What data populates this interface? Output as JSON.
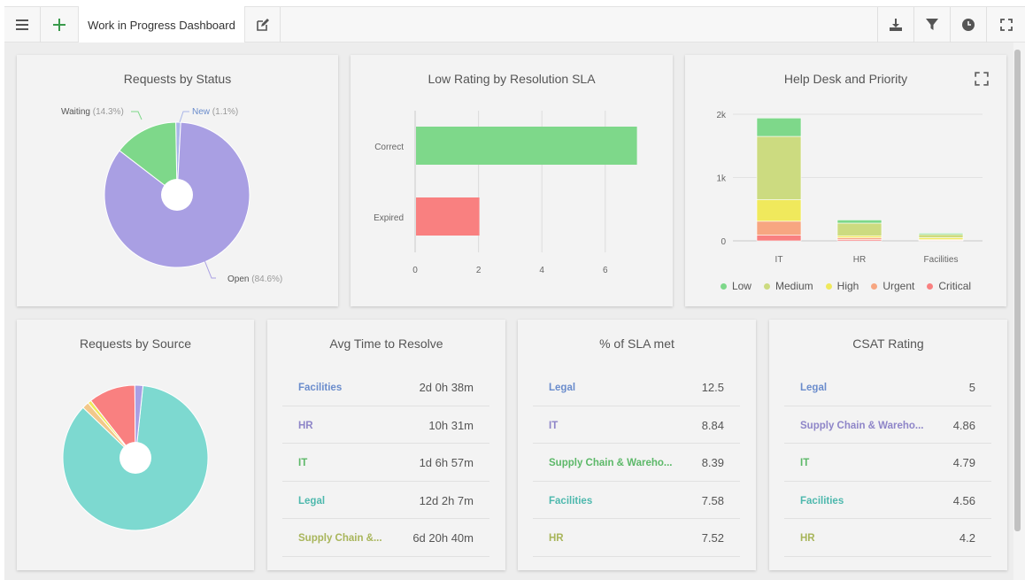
{
  "toolbar": {
    "menu_icon": "hamburger-menu-icon",
    "add_icon": "plus-icon",
    "tab_label": "Work in Progress Dashboard",
    "edit_icon": "edit-icon",
    "right_icons": [
      "download-icon",
      "filter-icon",
      "clock-icon",
      "fullscreen-icon"
    ]
  },
  "colors": {
    "green": "#7ed88a",
    "red": "#f98080",
    "purple": "#a99fe3",
    "teal": "#7dd9d0",
    "olive": "#ccdb80",
    "yellow": "#f0e95c",
    "orange": "#f7a681",
    "blue_link": "#6a8ccc"
  },
  "cards": {
    "status": {
      "title": "Requests by Status",
      "chart_data": {
        "type": "pie",
        "title": "Requests by Status",
        "slices": [
          {
            "label": "Open",
            "pct": "(84.6%)",
            "value": 84.6
          },
          {
            "label": "Waiting",
            "pct": "(14.3%)",
            "value": 14.3
          },
          {
            "label": "New",
            "pct": "(1.1%)",
            "value": 1.1
          }
        ]
      }
    },
    "sla_rating": {
      "title": "Low Rating by Resolution SLA",
      "chart_data": {
        "type": "bar",
        "orientation": "horizontal",
        "title": "Low Rating by Resolution SLA",
        "categories": [
          "Correct",
          "Expired"
        ],
        "values": [
          7,
          2
        ],
        "xlim": [
          0,
          7
        ],
        "xticks": [
          "0",
          "2",
          "4",
          "6"
        ]
      }
    },
    "helpdesk": {
      "title": "Help Desk and Priority",
      "chart_data": {
        "type": "bar",
        "stacked": true,
        "title": "Help Desk and Priority",
        "categories": [
          "IT",
          "HR",
          "Facilities"
        ],
        "yticks": [
          "0",
          "1k",
          "2k"
        ],
        "ylim": [
          0,
          2000
        ],
        "series": [
          {
            "name": "Low",
            "values": [
              290,
              50,
              20
            ]
          },
          {
            "name": "Medium",
            "values": [
              1000,
              200,
              50
            ]
          },
          {
            "name": "High",
            "values": [
              340,
              30,
              30
            ]
          },
          {
            "name": "Urgent",
            "values": [
              220,
              30,
              10
            ]
          },
          {
            "name": "Critical",
            "values": [
              90,
              20,
              10
            ]
          }
        ],
        "legend": "bottom"
      }
    },
    "source": {
      "title": "Requests by Source",
      "chart_data": {
        "type": "pie",
        "title": "Requests by Source",
        "slices": [
          {
            "value": 85.5
          },
          {
            "value": 1.5
          },
          {
            "value": 0.8
          },
          {
            "value": 10.4
          },
          {
            "value": 1.8
          }
        ]
      }
    },
    "avg_time": {
      "title": "Avg Time to Resolve",
      "rows": [
        {
          "name": "Facilities",
          "value": "2d 0h 38m"
        },
        {
          "name": "HR",
          "value": "10h 31m"
        },
        {
          "name": "IT",
          "value": "1d 6h 57m"
        },
        {
          "name": "Legal",
          "value": "12d 2h 7m"
        },
        {
          "name": "Supply Chain &...",
          "value": "6d 20h 40m"
        }
      ]
    },
    "sla_met": {
      "title": "% of SLA met",
      "rows": [
        {
          "name": "Legal",
          "value": "12.5"
        },
        {
          "name": "IT",
          "value": "8.84"
        },
        {
          "name": "Supply Chain & Wareho...",
          "value": "8.39"
        },
        {
          "name": "Facilities",
          "value": "7.58"
        },
        {
          "name": "HR",
          "value": "7.52"
        }
      ]
    },
    "csat": {
      "title": "CSAT Rating",
      "rows": [
        {
          "name": "Legal",
          "value": "5"
        },
        {
          "name": "Supply Chain & Wareho...",
          "value": "4.86"
        },
        {
          "name": "IT",
          "value": "4.79"
        },
        {
          "name": "Facilities",
          "value": "4.56"
        },
        {
          "name": "HR",
          "value": "4.2"
        }
      ]
    }
  }
}
